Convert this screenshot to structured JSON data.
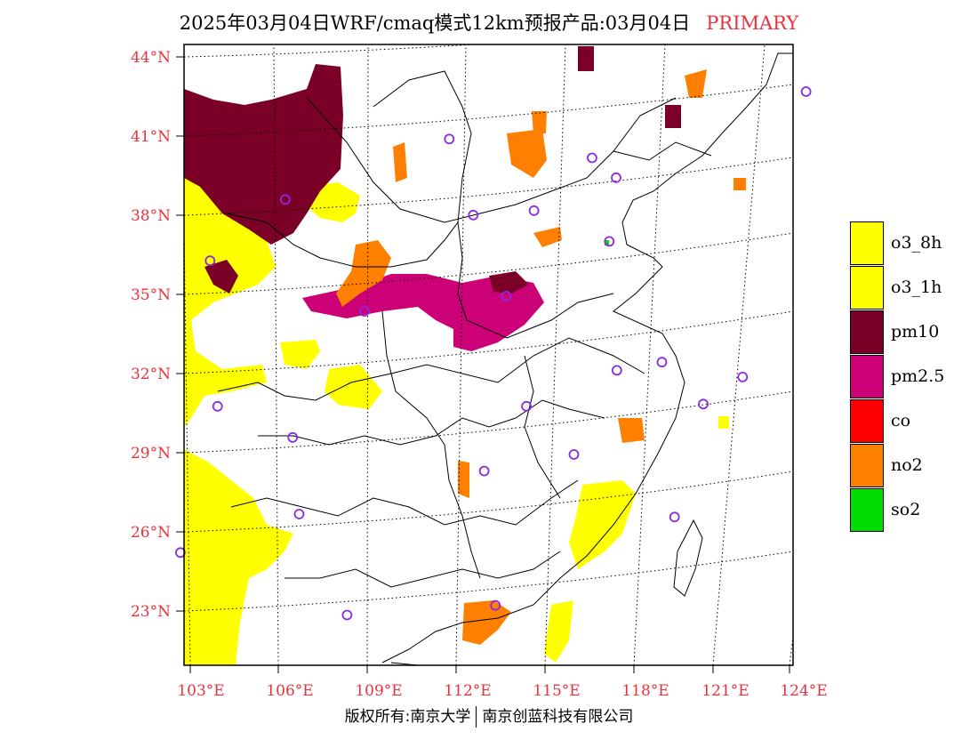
{
  "title": {
    "main": "2025年03月04日WRF/cmaq模式12km预报产品:03月04日",
    "tag": "PRIMARY"
  },
  "axes": {
    "lat_labels": [
      "44°N",
      "41°N",
      "38°N",
      "35°N",
      "32°N",
      "29°N",
      "26°N",
      "23°N"
    ],
    "lon_labels": [
      "103°E",
      "106°E",
      "109°E",
      "112°E",
      "115°E",
      "118°E",
      "121°E",
      "124°E"
    ]
  },
  "legend": [
    {
      "label": "o3_8h",
      "color": "#ffff00"
    },
    {
      "label": "o3_1h",
      "color": "#ffff00"
    },
    {
      "label": "pm10",
      "color": "#7a0027"
    },
    {
      "label": "pm2.5",
      "color": "#cc0077"
    },
    {
      "label": "co",
      "color": "#ff0000"
    },
    {
      "label": "no2",
      "color": "#ff7f00"
    },
    {
      "label": "so2",
      "color": "#00dd00"
    }
  ],
  "footer": {
    "left": "版权所有:南京大学",
    "right": "南京创蓝科技有限公司"
  },
  "colors": {
    "axis_label": "#e8323c",
    "station_marker": "#8a2be2"
  },
  "stations_lonlat": [
    [
      104.0,
      30.6
    ],
    [
      106.5,
      29.5
    ],
    [
      106.7,
      26.6
    ],
    [
      102.7,
      25.0
    ],
    [
      108.3,
      22.8
    ],
    [
      108.9,
      34.3
    ],
    [
      103.8,
      36.1
    ],
    [
      106.3,
      38.5
    ],
    [
      111.7,
      40.8
    ],
    [
      112.5,
      37.9
    ],
    [
      114.5,
      38.0
    ],
    [
      113.6,
      34.8
    ],
    [
      116.4,
      39.9
    ],
    [
      117.2,
      39.1
    ],
    [
      117.0,
      36.7
    ],
    [
      117.3,
      31.8
    ],
    [
      114.3,
      30.6
    ],
    [
      112.9,
      28.2
    ],
    [
      115.9,
      28.7
    ],
    [
      118.8,
      32.0
    ],
    [
      120.2,
      30.3
    ],
    [
      121.5,
      31.2
    ],
    [
      119.3,
      26.1
    ],
    [
      113.3,
      23.1
    ],
    [
      123.4,
      41.8
    ]
  ]
}
